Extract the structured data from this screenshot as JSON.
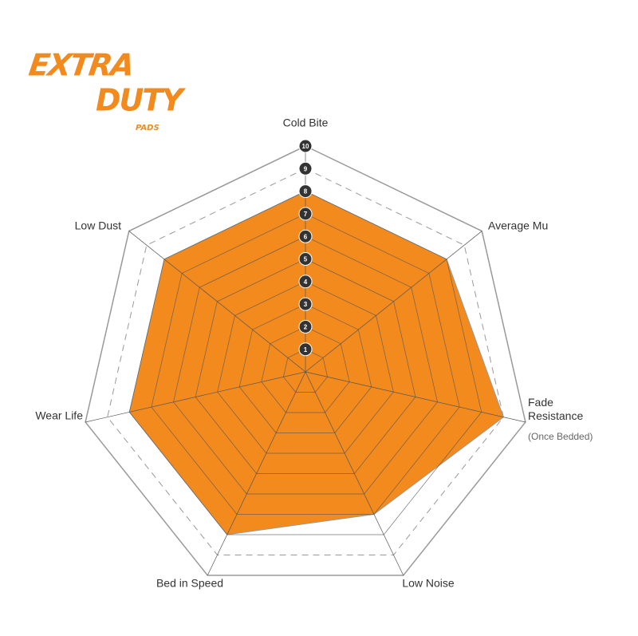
{
  "chart_data": {
    "type": "radar",
    "logo": {
      "line1": "EXTRA",
      "line2": "DUTY",
      "line3": "PADS"
    },
    "categories": [
      "Cold Bite",
      "Average Mu",
      "Fade Resistance",
      "Low Noise",
      "Bed in Speed",
      "Wear Life",
      "Low Dust"
    ],
    "annotation": "(Once Bedded)",
    "series": [
      {
        "color": "#f28a1e",
        "values": [
          8,
          8,
          9,
          7,
          8,
          8,
          8
        ]
      }
    ],
    "rlim": [
      0,
      10
    ],
    "rticks": [
      1,
      2,
      3,
      4,
      5,
      6,
      7,
      8,
      9,
      10
    ],
    "grid": true
  }
}
